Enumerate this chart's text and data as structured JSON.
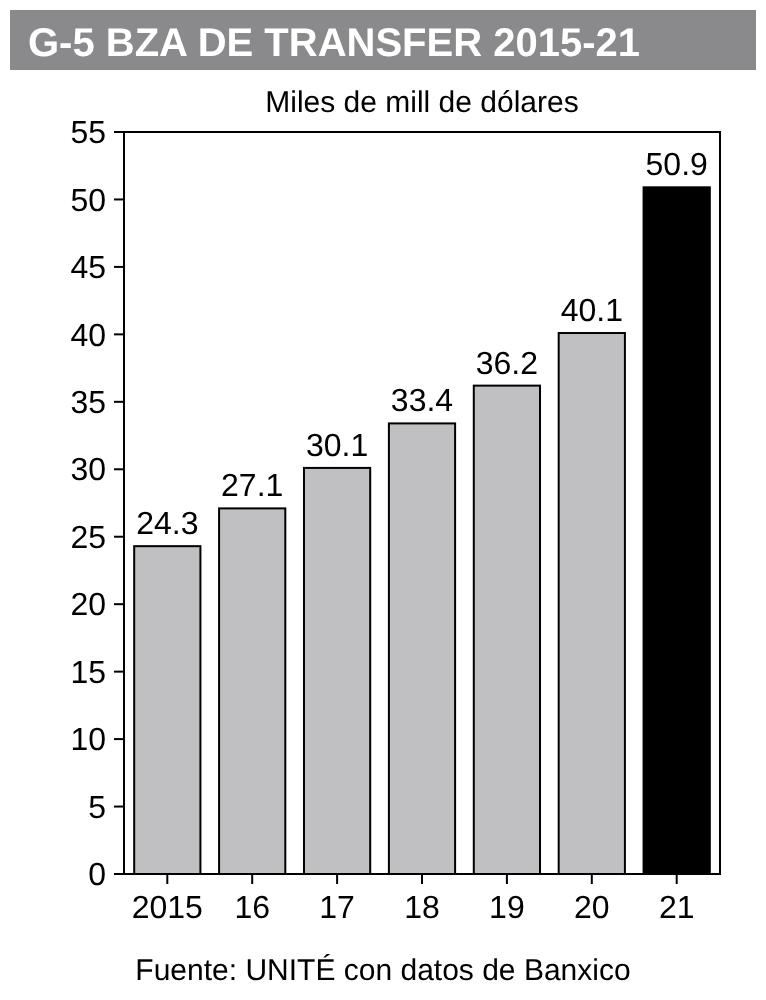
{
  "chart_data": {
    "type": "bar",
    "title": "G-5  BZA DE TRANSFER 2015-21",
    "subtitle": "Miles de mill de dólares",
    "categories": [
      "2015",
      "16",
      "17",
      "18",
      "19",
      "20",
      "21"
    ],
    "values": [
      24.3,
      27.1,
      30.1,
      33.4,
      36.2,
      40.1,
      50.9
    ],
    "colors": [
      "#c0c0c2",
      "#c0c0c2",
      "#c0c0c2",
      "#c0c0c2",
      "#c0c0c2",
      "#c0c0c2",
      "#000000"
    ],
    "ylim": [
      0,
      55
    ],
    "yticks": [
      0,
      5,
      10,
      15,
      20,
      25,
      30,
      35,
      40,
      45,
      50,
      55
    ],
    "grid": false,
    "data_labels": true,
    "annotations": [
      "Fuente: UNITÉ con datos de Banxico"
    ]
  }
}
